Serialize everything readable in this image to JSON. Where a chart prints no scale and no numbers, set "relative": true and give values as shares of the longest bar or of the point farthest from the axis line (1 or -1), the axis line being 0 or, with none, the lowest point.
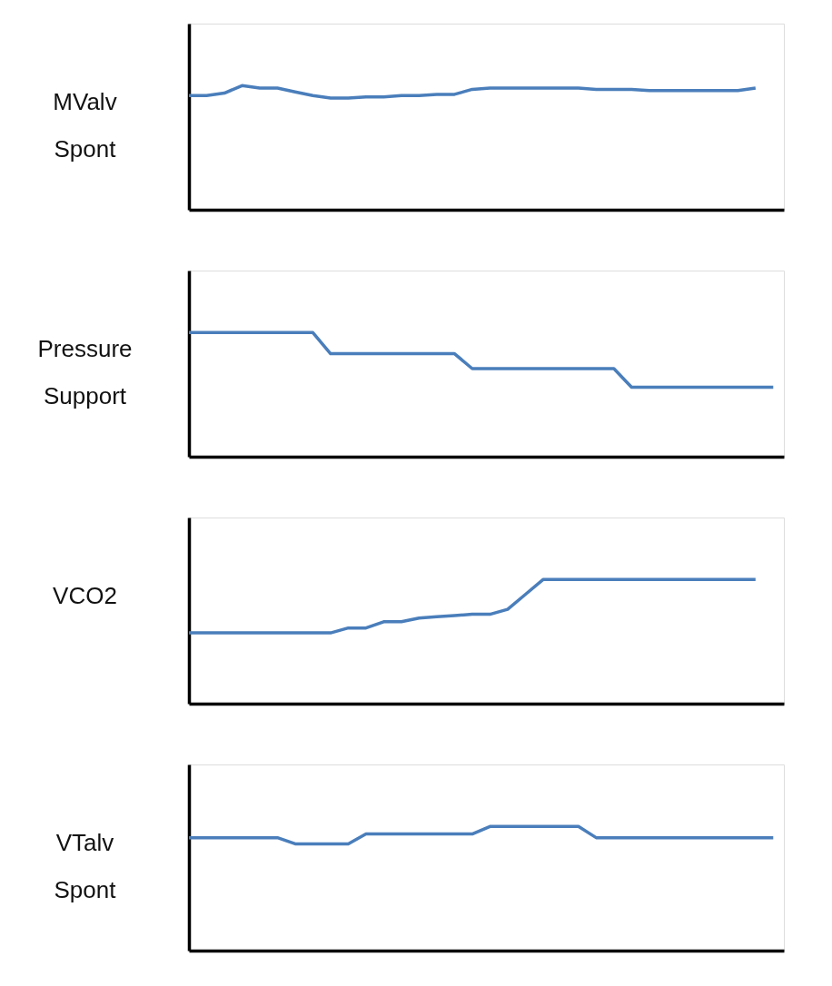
{
  "chart_data": [
    {
      "type": "line",
      "relative": true,
      "ylabel": "MValv Spont",
      "categories": [
        null,
        null,
        null,
        null,
        null,
        null,
        null,
        null,
        null,
        null,
        null,
        null,
        null,
        null,
        null,
        null,
        null,
        null,
        null,
        null,
        null,
        null,
        null,
        null,
        null,
        null,
        null,
        null,
        null,
        null,
        null,
        null,
        null,
        null
      ],
      "series": [
        {
          "color": "#4a7ebb",
          "values": [
            0.92,
            0.92,
            0.94,
            1,
            0.98,
            0.98,
            0.95,
            0.92,
            0.9,
            0.9,
            0.91,
            0.91,
            0.92,
            0.92,
            0.93,
            0.93,
            0.97,
            0.98,
            0.98,
            0.98,
            0.98,
            0.98,
            0.98,
            0.97,
            0.97,
            0.97,
            0.96,
            0.96,
            0.96,
            0.96,
            0.96,
            0.96,
            0.98,
            null
          ]
        }
      ],
      "grid": false,
      "tick_labels": false,
      "marker": "none",
      "line_style": "solid"
    },
    {
      "type": "line",
      "relative": true,
      "ylabel": "Pressure Support",
      "categories": [
        null,
        null,
        null,
        null,
        null,
        null,
        null,
        null,
        null,
        null,
        null,
        null,
        null,
        null,
        null,
        null,
        null,
        null,
        null,
        null,
        null,
        null,
        null,
        null,
        null,
        null,
        null,
        null,
        null,
        null,
        null,
        null,
        null,
        null
      ],
      "series": [
        {
          "color": "#4a7ebb",
          "values": [
            1,
            1,
            1,
            1,
            1,
            1,
            1,
            1,
            0.83,
            0.83,
            0.83,
            0.83,
            0.83,
            0.83,
            0.83,
            0.83,
            0.71,
            0.71,
            0.71,
            0.71,
            0.71,
            0.71,
            0.71,
            0.71,
            0.71,
            0.56,
            0.56,
            0.56,
            0.56,
            0.56,
            0.56,
            0.56,
            0.56,
            0.56
          ]
        }
      ],
      "grid": false,
      "tick_labels": false,
      "marker": "none",
      "line_style": "solid"
    },
    {
      "type": "line",
      "relative": true,
      "ylabel": "VCO2",
      "categories": [
        null,
        null,
        null,
        null,
        null,
        null,
        null,
        null,
        null,
        null,
        null,
        null,
        null,
        null,
        null,
        null,
        null,
        null,
        null,
        null,
        null,
        null,
        null,
        null,
        null,
        null,
        null,
        null,
        null,
        null,
        null,
        null,
        null,
        null
      ],
      "series": [
        {
          "color": "#4a7ebb",
          "values": [
            0.57,
            0.57,
            0.57,
            0.57,
            0.57,
            0.57,
            0.57,
            0.57,
            0.57,
            0.61,
            0.61,
            0.66,
            0.66,
            0.69,
            0.7,
            0.71,
            0.72,
            0.72,
            0.76,
            0.88,
            1,
            1,
            1,
            1,
            1,
            1,
            1,
            1,
            1,
            1,
            1,
            1,
            1,
            null
          ]
        }
      ],
      "grid": false,
      "tick_labels": false,
      "marker": "none",
      "line_style": "solid"
    },
    {
      "type": "line",
      "relative": true,
      "ylabel": "VTalv Spont",
      "categories": [
        null,
        null,
        null,
        null,
        null,
        null,
        null,
        null,
        null,
        null,
        null,
        null,
        null,
        null,
        null,
        null,
        null,
        null,
        null,
        null,
        null,
        null,
        null,
        null,
        null,
        null,
        null,
        null,
        null,
        null,
        null,
        null,
        null,
        null
      ],
      "series": [
        {
          "color": "#4a7ebb",
          "values": [
            0.91,
            0.91,
            0.91,
            0.91,
            0.91,
            0.91,
            0.86,
            0.86,
            0.86,
            0.86,
            0.94,
            0.94,
            0.94,
            0.94,
            0.94,
            0.94,
            0.94,
            1,
            1,
            1,
            1,
            1,
            1,
            0.91,
            0.91,
            0.91,
            0.91,
            0.91,
            0.91,
            0.91,
            0.91,
            0.91,
            0.91,
            0.91
          ]
        }
      ],
      "grid": false,
      "tick_labels": false,
      "marker": "none",
      "line_style": "solid"
    }
  ]
}
